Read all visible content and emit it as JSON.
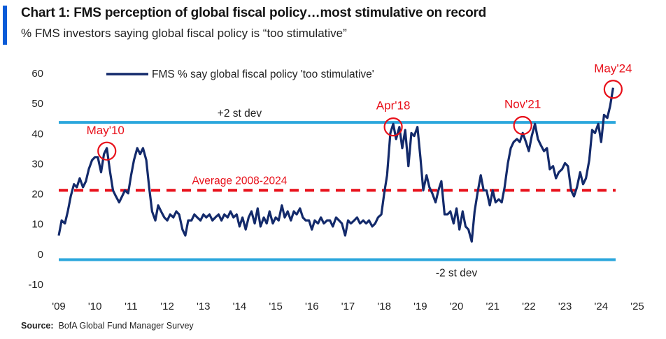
{
  "header": {
    "title": "Chart 1: FMS perception of global fiscal policy…most stimulative on record",
    "subtitle": "% FMS investors saying global fiscal policy is “too stimulative”"
  },
  "source": {
    "label": "Source:",
    "text": "BofA Global Fund Manager Survey"
  },
  "chart_data": {
    "type": "line",
    "title": "Chart 1: FMS perception of global fiscal policy…most stimulative on record",
    "subtitle": "% FMS investors saying global fiscal policy is “too stimulative”",
    "xlabel": "",
    "ylabel": "",
    "x_ticks": [
      "'09",
      "'10",
      "'11",
      "'12",
      "'13",
      "'14",
      "'15",
      "'16",
      "'17",
      "'18",
      "'19",
      "'20",
      "'21",
      "'22",
      "'23",
      "'24",
      "'25"
    ],
    "y_ticks": [
      60,
      50,
      40,
      30,
      20,
      10,
      0,
      -10
    ],
    "ylim": [
      -10,
      60
    ],
    "xlim": [
      2009.0,
      2025.0
    ],
    "grid": false,
    "legend": {
      "position": "top-left",
      "entries": [
        "FMS % say global fiscal policy 'too stimulative'"
      ]
    },
    "colors": {
      "series": "#132a6b",
      "band": "#2aa6dc",
      "average": "#e8101a",
      "annotation": "#e8101a"
    },
    "reference_lines": [
      {
        "label": "+2 st dev",
        "value": 43.5,
        "style": "solid",
        "color": "#2aa6dc"
      },
      {
        "label": "Average 2008-2024",
        "value": 21,
        "style": "dashed",
        "color": "#e8101a"
      },
      {
        "label": "-2 st dev",
        "value": -2,
        "style": "solid",
        "color": "#2aa6dc"
      }
    ],
    "annotations": [
      {
        "label": "May'10",
        "x": 2010.33,
        "y": 34
      },
      {
        "label": "Apr'18",
        "x": 2018.25,
        "y": 42
      },
      {
        "label": "Nov'21",
        "x": 2021.83,
        "y": 42.5
      },
      {
        "label": "May'24",
        "x": 2024.33,
        "y": 54.5
      }
    ],
    "series": [
      {
        "name": "FMS % say global fiscal policy 'too stimulative'",
        "points": [
          [
            2009.0,
            6
          ],
          [
            2009.08,
            11
          ],
          [
            2009.17,
            10
          ],
          [
            2009.25,
            14
          ],
          [
            2009.33,
            19
          ],
          [
            2009.42,
            23
          ],
          [
            2009.5,
            22
          ],
          [
            2009.58,
            25
          ],
          [
            2009.67,
            22
          ],
          [
            2009.75,
            24
          ],
          [
            2009.83,
            28
          ],
          [
            2009.92,
            31
          ],
          [
            2010.0,
            32
          ],
          [
            2010.08,
            32
          ],
          [
            2010.17,
            27
          ],
          [
            2010.25,
            33
          ],
          [
            2010.33,
            35
          ],
          [
            2010.42,
            27
          ],
          [
            2010.5,
            21
          ],
          [
            2010.58,
            19
          ],
          [
            2010.67,
            17
          ],
          [
            2010.75,
            19
          ],
          [
            2010.83,
            21
          ],
          [
            2010.92,
            20
          ],
          [
            2011.0,
            26
          ],
          [
            2011.08,
            31
          ],
          [
            2011.17,
            35
          ],
          [
            2011.25,
            33
          ],
          [
            2011.33,
            35
          ],
          [
            2011.42,
            31
          ],
          [
            2011.5,
            22
          ],
          [
            2011.58,
            14
          ],
          [
            2011.67,
            11
          ],
          [
            2011.75,
            16
          ],
          [
            2011.83,
            14
          ],
          [
            2011.92,
            12
          ],
          [
            2012.0,
            11
          ],
          [
            2012.08,
            13
          ],
          [
            2012.17,
            12
          ],
          [
            2012.25,
            14
          ],
          [
            2012.33,
            13
          ],
          [
            2012.42,
            8
          ],
          [
            2012.5,
            6
          ],
          [
            2012.58,
            11
          ],
          [
            2012.67,
            11
          ],
          [
            2012.75,
            13
          ],
          [
            2012.83,
            12
          ],
          [
            2012.92,
            11
          ],
          [
            2013.0,
            13
          ],
          [
            2013.08,
            12
          ],
          [
            2013.17,
            13
          ],
          [
            2013.25,
            11
          ],
          [
            2013.33,
            12
          ],
          [
            2013.42,
            13
          ],
          [
            2013.5,
            11
          ],
          [
            2013.58,
            13
          ],
          [
            2013.67,
            12
          ],
          [
            2013.75,
            14
          ],
          [
            2013.83,
            12
          ],
          [
            2013.92,
            13
          ],
          [
            2014.0,
            9
          ],
          [
            2014.08,
            12
          ],
          [
            2014.17,
            8
          ],
          [
            2014.25,
            12
          ],
          [
            2014.33,
            14
          ],
          [
            2014.42,
            10
          ],
          [
            2014.5,
            15
          ],
          [
            2014.58,
            9
          ],
          [
            2014.67,
            12
          ],
          [
            2014.75,
            10
          ],
          [
            2014.83,
            14
          ],
          [
            2014.92,
            10
          ],
          [
            2015.0,
            12
          ],
          [
            2015.08,
            11
          ],
          [
            2015.17,
            16
          ],
          [
            2015.25,
            12
          ],
          [
            2015.33,
            14
          ],
          [
            2015.42,
            11
          ],
          [
            2015.5,
            14
          ],
          [
            2015.58,
            13
          ],
          [
            2015.67,
            15
          ],
          [
            2015.75,
            12
          ],
          [
            2015.83,
            11
          ],
          [
            2015.92,
            11
          ],
          [
            2016.0,
            8
          ],
          [
            2016.08,
            11
          ],
          [
            2016.17,
            10
          ],
          [
            2016.25,
            12
          ],
          [
            2016.33,
            10
          ],
          [
            2016.42,
            11
          ],
          [
            2016.5,
            11
          ],
          [
            2016.58,
            9
          ],
          [
            2016.67,
            12
          ],
          [
            2016.75,
            11
          ],
          [
            2016.83,
            10
          ],
          [
            2016.92,
            6
          ],
          [
            2017.0,
            11
          ],
          [
            2017.08,
            10
          ],
          [
            2017.17,
            11
          ],
          [
            2017.25,
            12
          ],
          [
            2017.33,
            10
          ],
          [
            2017.42,
            11
          ],
          [
            2017.5,
            10
          ],
          [
            2017.58,
            11
          ],
          [
            2017.67,
            9
          ],
          [
            2017.75,
            10
          ],
          [
            2017.83,
            12
          ],
          [
            2017.92,
            13
          ],
          [
            2018.0,
            20
          ],
          [
            2018.08,
            26
          ],
          [
            2018.17,
            40
          ],
          [
            2018.25,
            43
          ],
          [
            2018.33,
            38
          ],
          [
            2018.42,
            42
          ],
          [
            2018.5,
            35
          ],
          [
            2018.58,
            41
          ],
          [
            2018.67,
            29
          ],
          [
            2018.75,
            40
          ],
          [
            2018.83,
            39
          ],
          [
            2018.92,
            42
          ],
          [
            2019.0,
            32
          ],
          [
            2019.08,
            21
          ],
          [
            2019.17,
            26
          ],
          [
            2019.25,
            22
          ],
          [
            2019.33,
            20
          ],
          [
            2019.42,
            17
          ],
          [
            2019.5,
            21
          ],
          [
            2019.58,
            24
          ],
          [
            2019.67,
            13
          ],
          [
            2019.75,
            13
          ],
          [
            2019.83,
            14
          ],
          [
            2019.92,
            10
          ],
          [
            2020.0,
            15
          ],
          [
            2020.08,
            8
          ],
          [
            2020.17,
            14
          ],
          [
            2020.25,
            9
          ],
          [
            2020.33,
            8
          ],
          [
            2020.42,
            4
          ],
          [
            2020.5,
            14
          ],
          [
            2020.58,
            20
          ],
          [
            2020.67,
            26
          ],
          [
            2020.75,
            21
          ],
          [
            2020.83,
            21
          ],
          [
            2020.92,
            16
          ],
          [
            2021.0,
            21
          ],
          [
            2021.08,
            17
          ],
          [
            2021.17,
            18
          ],
          [
            2021.25,
            17
          ],
          [
            2021.33,
            22
          ],
          [
            2021.42,
            30
          ],
          [
            2021.5,
            35
          ],
          [
            2021.58,
            37
          ],
          [
            2021.67,
            38
          ],
          [
            2021.75,
            37
          ],
          [
            2021.83,
            40
          ],
          [
            2021.92,
            37
          ],
          [
            2022.0,
            34
          ],
          [
            2022.08,
            39
          ],
          [
            2022.17,
            43
          ],
          [
            2022.25,
            38
          ],
          [
            2022.33,
            36
          ],
          [
            2022.42,
            34
          ],
          [
            2022.5,
            35
          ],
          [
            2022.58,
            28
          ],
          [
            2022.67,
            29
          ],
          [
            2022.75,
            25
          ],
          [
            2022.83,
            27
          ],
          [
            2022.92,
            28
          ],
          [
            2023.0,
            30
          ],
          [
            2023.08,
            29
          ],
          [
            2023.17,
            21
          ],
          [
            2023.25,
            19
          ],
          [
            2023.33,
            22
          ],
          [
            2023.42,
            27
          ],
          [
            2023.5,
            23
          ],
          [
            2023.58,
            25
          ],
          [
            2023.67,
            31
          ],
          [
            2023.75,
            41
          ],
          [
            2023.83,
            40
          ],
          [
            2023.92,
            43
          ],
          [
            2024.0,
            37
          ],
          [
            2024.08,
            46
          ],
          [
            2024.17,
            45
          ],
          [
            2024.25,
            49
          ],
          [
            2024.33,
            55
          ]
        ]
      }
    ]
  }
}
